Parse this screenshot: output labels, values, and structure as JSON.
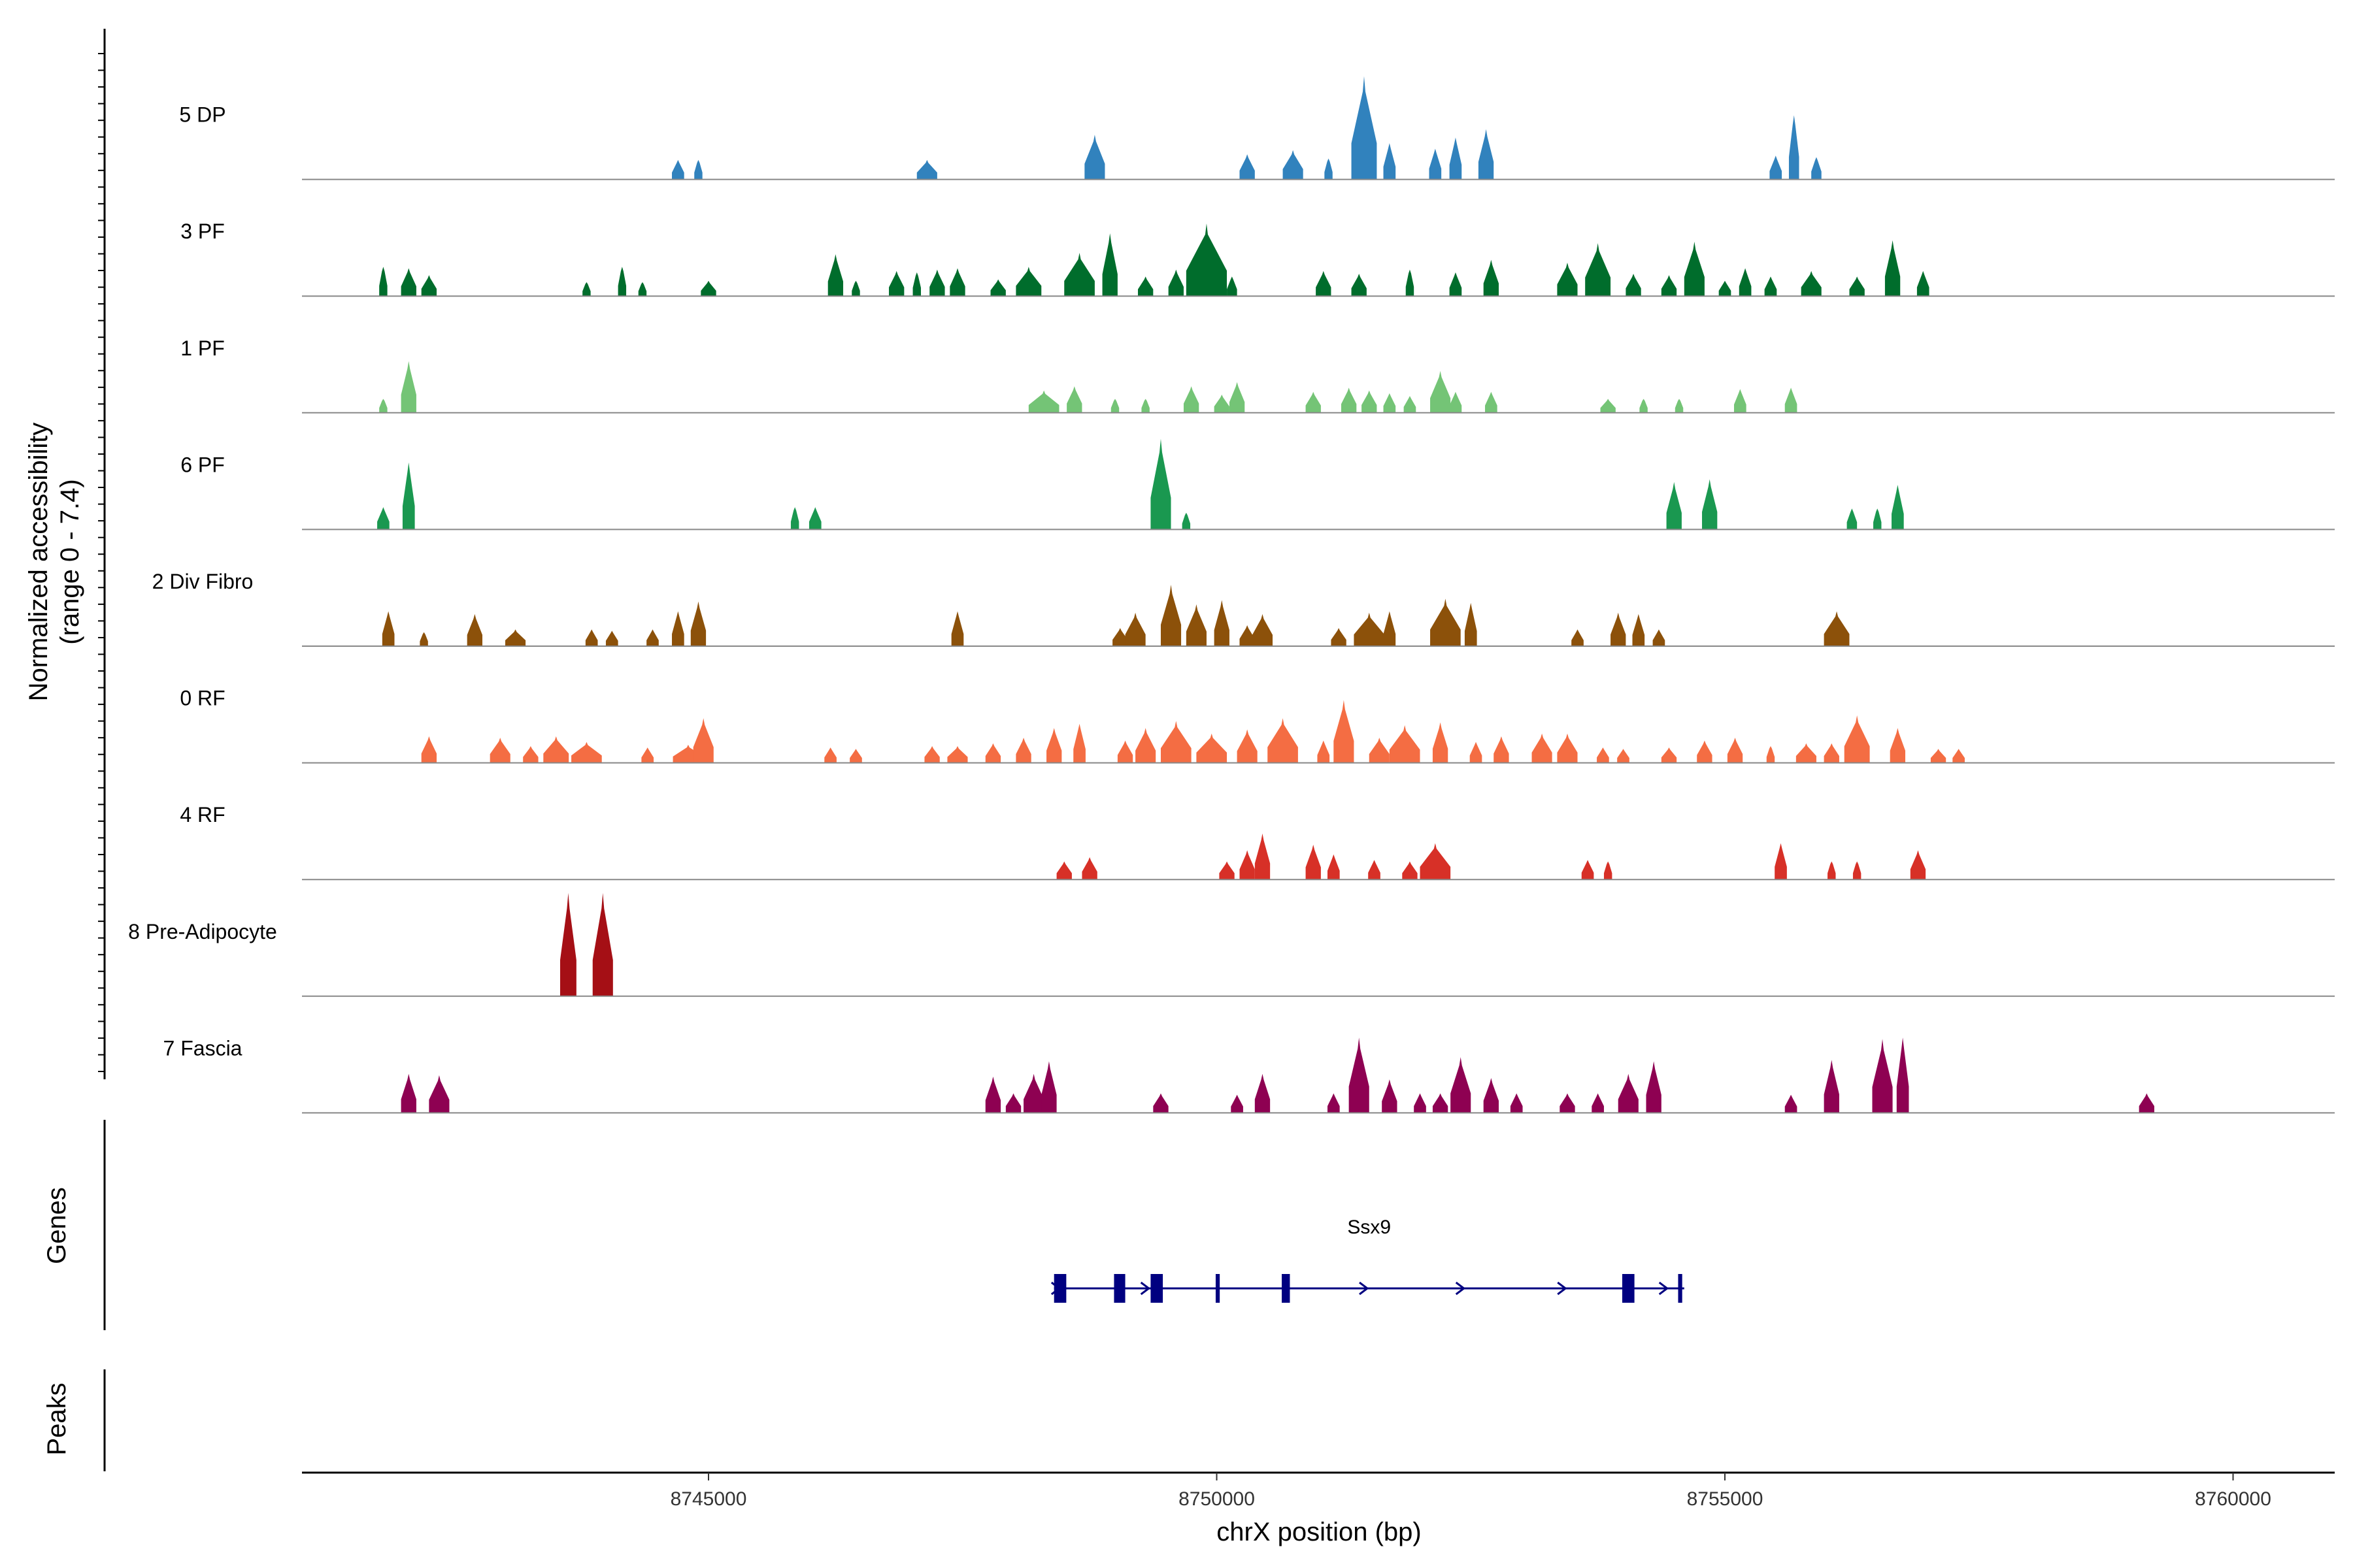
{
  "chart_data": {
    "type": "area",
    "title": "",
    "xlabel": "chrX position (bp)",
    "ylabel": "Normalized accessibility (range 0 - 7.4)",
    "ylabel_lines": [
      "Normalized accessibility",
      "(range 0 - 7.4)"
    ],
    "ylim": [
      0,
      7.4
    ],
    "xlim": [
      8741000,
      8761000
    ],
    "x_ticks": [
      8745000,
      8750000,
      8755000,
      8760000
    ],
    "x_tick_labels": [
      "8745000",
      "8750000",
      "8755000",
      "8760000"
    ],
    "panel_labels": {
      "genes": "Genes",
      "peaks": "Peaks"
    },
    "series": [
      {
        "name": "5 DP",
        "color": "#3182bd",
        "peaks": [
          [
            8744700,
            120,
            1.4
          ],
          [
            8744900,
            80,
            1.4
          ],
          [
            8747150,
            200,
            1.4
          ],
          [
            8748800,
            200,
            3.2
          ],
          [
            8750300,
            150,
            1.8
          ],
          [
            8750750,
            200,
            2.1
          ],
          [
            8751100,
            80,
            1.5
          ],
          [
            8751450,
            250,
            7.4
          ],
          [
            8751700,
            120,
            2.6
          ],
          [
            8752150,
            120,
            2.2
          ],
          [
            8752350,
            120,
            3.0
          ],
          [
            8752650,
            150,
            3.6
          ],
          [
            8755500,
            120,
            1.7
          ],
          [
            8755680,
            100,
            4.6
          ],
          [
            8755900,
            100,
            1.6
          ]
        ]
      },
      {
        "name": "3 PF",
        "color": "#006d2c",
        "peaks": [
          [
            8741800,
            80,
            2.1
          ],
          [
            8742050,
            150,
            2.0
          ],
          [
            8742250,
            150,
            1.5
          ],
          [
            8743800,
            80,
            1.0
          ],
          [
            8744150,
            80,
            2.1
          ],
          [
            8744350,
            80,
            1.0
          ],
          [
            8745000,
            150,
            1.1
          ],
          [
            8746250,
            150,
            3.0
          ],
          [
            8746450,
            80,
            1.1
          ],
          [
            8746850,
            150,
            1.8
          ],
          [
            8747050,
            80,
            1.7
          ],
          [
            8747250,
            150,
            1.9
          ],
          [
            8747450,
            150,
            2.0
          ],
          [
            8747850,
            150,
            1.2
          ],
          [
            8748150,
            250,
            2.1
          ],
          [
            8748650,
            300,
            3.1
          ],
          [
            8748950,
            150,
            4.5
          ],
          [
            8749300,
            150,
            1.4
          ],
          [
            8749600,
            150,
            1.9
          ],
          [
            8749900,
            400,
            5.2
          ],
          [
            8750150,
            100,
            1.4
          ],
          [
            8751050,
            150,
            1.8
          ],
          [
            8751400,
            150,
            1.6
          ],
          [
            8751900,
            80,
            1.9
          ],
          [
            8752350,
            120,
            1.7
          ],
          [
            8752700,
            150,
            2.6
          ],
          [
            8753450,
            200,
            2.4
          ],
          [
            8753750,
            250,
            3.8
          ],
          [
            8754100,
            150,
            1.6
          ],
          [
            8754450,
            150,
            1.5
          ],
          [
            8754700,
            200,
            3.9
          ],
          [
            8755000,
            120,
            1.1
          ],
          [
            8755200,
            120,
            2.0
          ],
          [
            8755450,
            120,
            1.4
          ],
          [
            8755850,
            200,
            1.8
          ],
          [
            8756300,
            150,
            1.4
          ],
          [
            8756650,
            150,
            4.0
          ],
          [
            8756950,
            120,
            1.8
          ]
        ]
      },
      {
        "name": "1 PF",
        "color": "#74c476",
        "peaks": [
          [
            8741800,
            80,
            1.0
          ],
          [
            8742050,
            150,
            3.7
          ],
          [
            8748300,
            300,
            1.6
          ],
          [
            8748600,
            150,
            1.9
          ],
          [
            8749000,
            80,
            1.0
          ],
          [
            8749300,
            80,
            1.0
          ],
          [
            8749750,
            150,
            1.9
          ],
          [
            8750050,
            150,
            1.3
          ],
          [
            8750200,
            150,
            2.2
          ],
          [
            8750950,
            150,
            1.5
          ],
          [
            8751300,
            150,
            1.8
          ],
          [
            8751500,
            150,
            1.6
          ],
          [
            8751700,
            120,
            1.4
          ],
          [
            8751900,
            120,
            1.2
          ],
          [
            8752200,
            200,
            3.0
          ],
          [
            8752350,
            120,
            1.5
          ],
          [
            8752700,
            120,
            1.5
          ],
          [
            8753850,
            150,
            1.0
          ],
          [
            8754200,
            80,
            1.0
          ],
          [
            8754550,
            80,
            1.0
          ],
          [
            8755150,
            120,
            1.7
          ],
          [
            8755650,
            120,
            1.8
          ]
        ]
      },
      {
        "name": "6 PF",
        "color": "#1a9850",
        "peaks": [
          [
            8741800,
            120,
            1.6
          ],
          [
            8742050,
            120,
            4.8
          ],
          [
            8745850,
            80,
            1.6
          ],
          [
            8746050,
            120,
            1.6
          ],
          [
            8749450,
            200,
            6.5
          ],
          [
            8749700,
            80,
            1.2
          ],
          [
            8754500,
            150,
            3.4
          ],
          [
            8754850,
            150,
            3.6
          ],
          [
            8756250,
            100,
            1.5
          ],
          [
            8756500,
            80,
            1.5
          ],
          [
            8756700,
            120,
            3.2
          ]
        ]
      },
      {
        "name": "2 Div Fibro",
        "color": "#8c510a",
        "peaks": [
          [
            8741850,
            120,
            2.5
          ],
          [
            8742200,
            80,
            1.0
          ],
          [
            8742700,
            150,
            2.3
          ],
          [
            8743100,
            200,
            1.2
          ],
          [
            8743850,
            120,
            1.2
          ],
          [
            8744050,
            120,
            1.1
          ],
          [
            8744450,
            120,
            1.2
          ],
          [
            8744700,
            120,
            2.5
          ],
          [
            8744900,
            150,
            3.2
          ],
          [
            8747450,
            120,
            2.5
          ],
          [
            8749050,
            150,
            1.3
          ],
          [
            8749200,
            200,
            2.4
          ],
          [
            8749550,
            200,
            4.4
          ],
          [
            8749800,
            200,
            3.0
          ],
          [
            8750050,
            150,
            3.3
          ],
          [
            8750300,
            150,
            1.5
          ],
          [
            8750450,
            200,
            2.3
          ],
          [
            8751200,
            150,
            1.3
          ],
          [
            8751500,
            300,
            2.4
          ],
          [
            8751700,
            120,
            2.5
          ],
          [
            8752250,
            300,
            3.4
          ],
          [
            8752500,
            120,
            3.1
          ],
          [
            8753550,
            120,
            1.2
          ],
          [
            8753950,
            150,
            2.4
          ],
          [
            8754150,
            120,
            2.3
          ],
          [
            8754350,
            120,
            1.2
          ],
          [
            8756100,
            250,
            2.5
          ]
        ]
      },
      {
        "name": "0 RF",
        "color": "#f46d43",
        "peaks": [
          [
            8742250,
            150,
            1.9
          ],
          [
            8742950,
            200,
            1.8
          ],
          [
            8743250,
            150,
            1.2
          ],
          [
            8743500,
            250,
            1.9
          ],
          [
            8743800,
            300,
            1.5
          ],
          [
            8744400,
            120,
            1.1
          ],
          [
            8744800,
            300,
            1.3
          ],
          [
            8744950,
            200,
            3.2
          ],
          [
            8746200,
            120,
            1.1
          ],
          [
            8746450,
            120,
            1.0
          ],
          [
            8747200,
            150,
            1.2
          ],
          [
            8747450,
            200,
            1.2
          ],
          [
            8747800,
            150,
            1.4
          ],
          [
            8748100,
            150,
            1.8
          ],
          [
            8748400,
            150,
            2.5
          ],
          [
            8748650,
            120,
            2.8
          ],
          [
            8749100,
            150,
            1.6
          ],
          [
            8749300,
            200,
            2.5
          ],
          [
            8749600,
            300,
            3.0
          ],
          [
            8749950,
            300,
            2.1
          ],
          [
            8750300,
            200,
            2.4
          ],
          [
            8750650,
            300,
            3.2
          ],
          [
            8751050,
            120,
            1.6
          ],
          [
            8751250,
            200,
            4.5
          ],
          [
            8751600,
            200,
            1.8
          ],
          [
            8751850,
            300,
            2.7
          ],
          [
            8752200,
            150,
            2.9
          ],
          [
            8752550,
            120,
            1.5
          ],
          [
            8752800,
            150,
            1.9
          ],
          [
            8753200,
            200,
            2.1
          ],
          [
            8753450,
            200,
            2.1
          ],
          [
            8753800,
            120,
            1.1
          ],
          [
            8754000,
            120,
            1.0
          ],
          [
            8754450,
            150,
            1.1
          ],
          [
            8754800,
            150,
            1.6
          ],
          [
            8755100,
            150,
            1.8
          ],
          [
            8755450,
            80,
            1.2
          ],
          [
            8755800,
            200,
            1.4
          ],
          [
            8756050,
            150,
            1.4
          ],
          [
            8756300,
            250,
            3.4
          ],
          [
            8756700,
            150,
            2.5
          ],
          [
            8757100,
            150,
            1.0
          ],
          [
            8757300,
            120,
            1.0
          ]
        ]
      },
      {
        "name": "4 RF",
        "color": "#d73027",
        "peaks": [
          [
            8748500,
            150,
            1.3
          ],
          [
            8748750,
            150,
            1.6
          ],
          [
            8750100,
            150,
            1.3
          ],
          [
            8750300,
            150,
            2.1
          ],
          [
            8750450,
            150,
            3.3
          ],
          [
            8750950,
            150,
            2.5
          ],
          [
            8751150,
            120,
            1.8
          ],
          [
            8751550,
            120,
            1.4
          ],
          [
            8751900,
            150,
            1.3
          ],
          [
            8752150,
            300,
            2.6
          ],
          [
            8753650,
            120,
            1.4
          ],
          [
            8753850,
            80,
            1.3
          ],
          [
            8755550,
            120,
            2.6
          ],
          [
            8756050,
            80,
            1.3
          ],
          [
            8756300,
            80,
            1.3
          ],
          [
            8756900,
            150,
            2.1
          ]
        ]
      },
      {
        "name": "8 Pre-Adipocyte",
        "color": "#a50f15",
        "peaks": [
          [
            8743620,
            160,
            7.4
          ],
          [
            8743960,
            200,
            7.4
          ]
        ]
      },
      {
        "name": "7 Fascia",
        "color": "#8e0152",
        "peaks": [
          [
            8742050,
            150,
            2.8
          ],
          [
            8742350,
            200,
            2.7
          ],
          [
            8747800,
            150,
            2.6
          ],
          [
            8748000,
            150,
            1.4
          ],
          [
            8748200,
            200,
            2.8
          ],
          [
            8748350,
            150,
            3.7
          ],
          [
            8749450,
            150,
            1.4
          ],
          [
            8750200,
            120,
            1.3
          ],
          [
            8750450,
            150,
            2.8
          ],
          [
            8751150,
            120,
            1.4
          ],
          [
            8751400,
            200,
            5.4
          ],
          [
            8751700,
            150,
            2.4
          ],
          [
            8752000,
            120,
            1.4
          ],
          [
            8752200,
            150,
            1.4
          ],
          [
            8752400,
            200,
            4.0
          ],
          [
            8752700,
            150,
            2.5
          ],
          [
            8752950,
            120,
            1.4
          ],
          [
            8753450,
            150,
            1.4
          ],
          [
            8753750,
            120,
            1.4
          ],
          [
            8754050,
            200,
            2.8
          ],
          [
            8754300,
            150,
            3.7
          ],
          [
            8755650,
            120,
            1.3
          ],
          [
            8756050,
            150,
            3.8
          ],
          [
            8756550,
            200,
            5.3
          ],
          [
            8756750,
            120,
            5.4
          ],
          [
            8759150,
            150,
            1.4
          ]
        ]
      }
    ],
    "genes": [
      {
        "name": "Ssx9",
        "start": 8748400,
        "end": 8754600,
        "strand": "+",
        "exons": [
          [
            8748400,
            8748520
          ],
          [
            8748990,
            8749100
          ],
          [
            8749350,
            8749470
          ],
          [
            8749990,
            8750030
          ],
          [
            8750640,
            8750720
          ],
          [
            8753990,
            8754110
          ],
          [
            8754540,
            8754580
          ]
        ],
        "arrows": [
          8748420,
          8749300,
          8751450,
          8752400,
          8753400,
          8754400
        ],
        "color": "#000080"
      }
    ],
    "peaks_track": []
  }
}
